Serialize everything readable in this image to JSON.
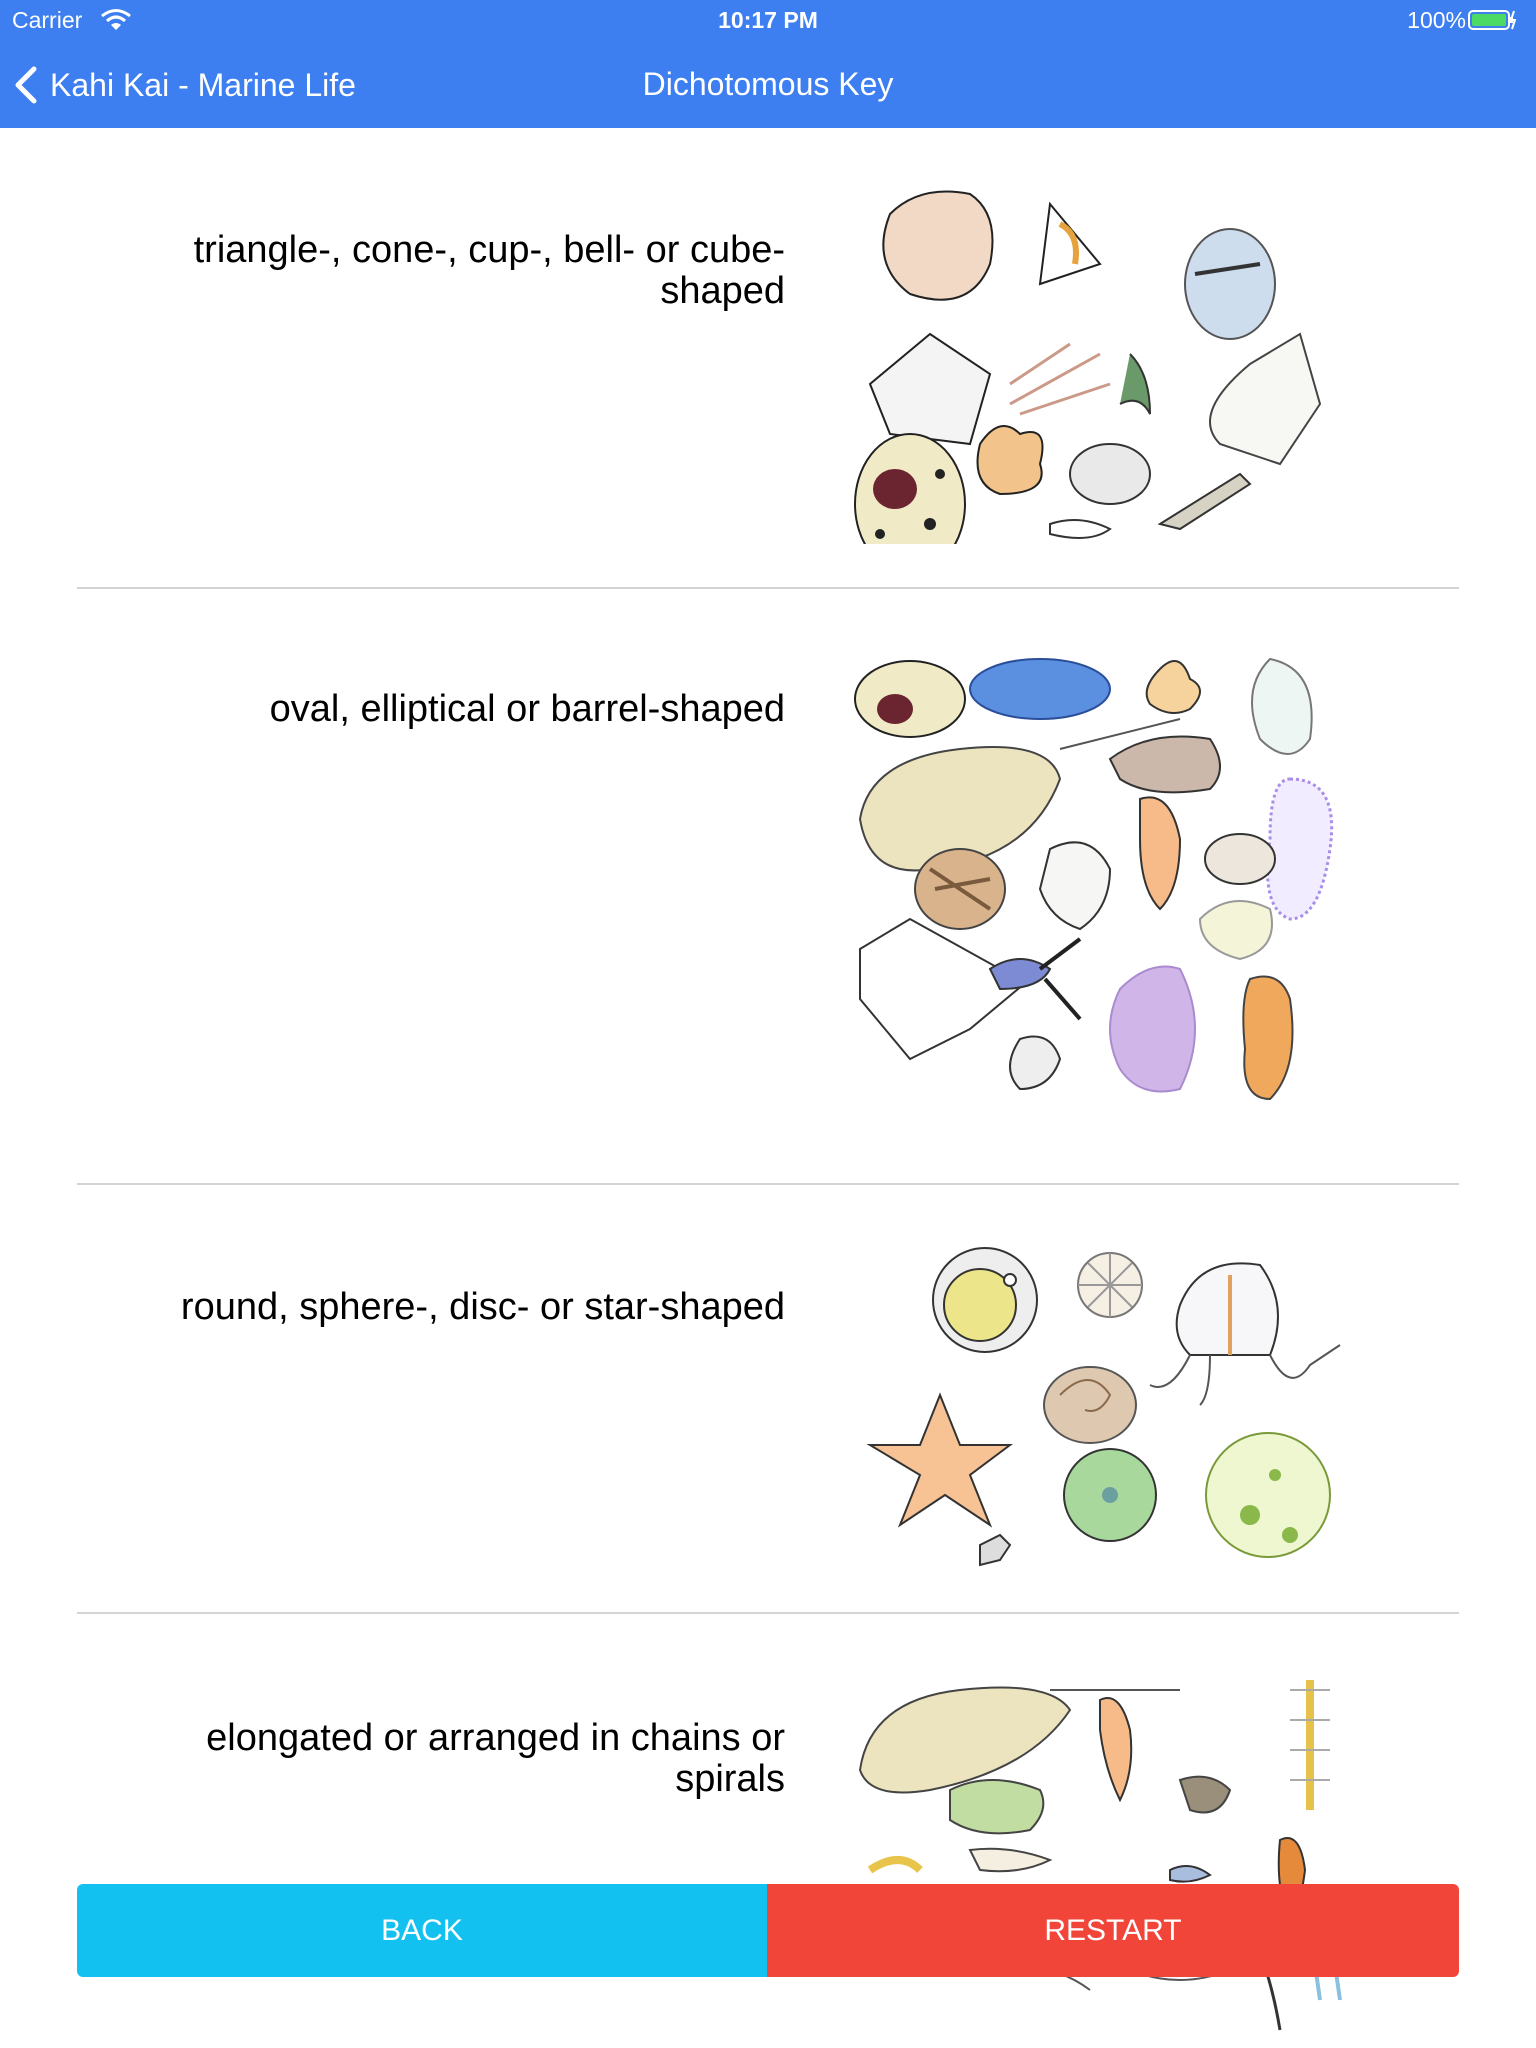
{
  "status_bar": {
    "carrier": "Carrier",
    "time": "10:17 PM",
    "battery": "100%"
  },
  "nav": {
    "back_label": "Kahi Kai - Marine Life",
    "title": "Dichotomous Key"
  },
  "options": [
    {
      "label": "triangle-, cone-, cup-, bell- or cube-shaped"
    },
    {
      "label": "oval, elliptical or barrel-shaped"
    },
    {
      "label": "round, sphere-, disc- or star-shaped"
    },
    {
      "label": "elongated or arranged in chains or spirals"
    }
  ],
  "buttons": {
    "back": "BACK",
    "restart": "RESTART"
  },
  "colors": {
    "nav_bar": "#3d7ff0",
    "back_button": "#13c1f1",
    "restart_button": "#f1453a"
  }
}
